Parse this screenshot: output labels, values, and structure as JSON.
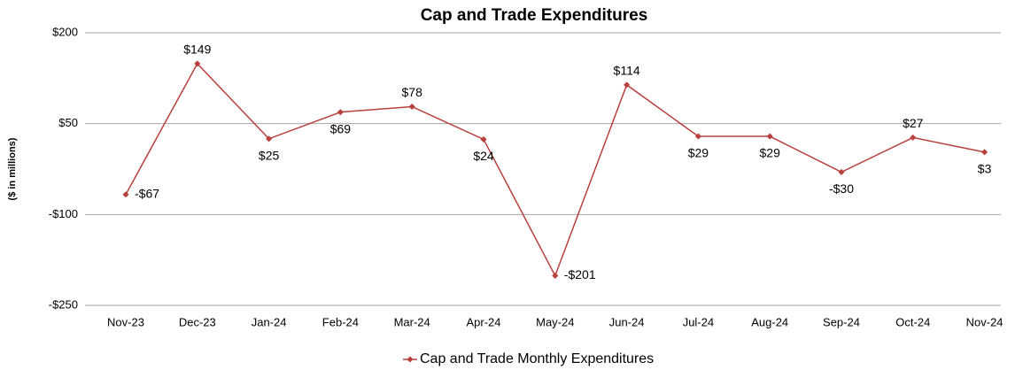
{
  "chart_data": {
    "type": "line",
    "title": "Cap and Trade Expenditures",
    "ylabel": "($ in millions)",
    "categories": [
      "Nov-23",
      "Dec-23",
      "Jan-24",
      "Feb-24",
      "Mar-24",
      "Apr-24",
      "May-24",
      "Jun-24",
      "Jul-24",
      "Aug-24",
      "Sep-24",
      "Oct-24",
      "Nov-24"
    ],
    "series": [
      {
        "name": "Cap and Trade Monthly Expenditures",
        "color": "#b8403c",
        "values": [
          -67,
          149,
          25,
          69,
          78,
          24,
          -201,
          114,
          29,
          29,
          -30,
          27,
          3
        ],
        "value_labels": [
          "-$67",
          "$149",
          "$25",
          "$69",
          "$78",
          "$24",
          "-$201",
          "$114",
          "$29",
          "$29",
          "-$30",
          "$27",
          "$3"
        ]
      }
    ],
    "ylim": [
      -250,
      200
    ],
    "yticks": [
      {
        "value": -250,
        "label": "-$250"
      },
      {
        "value": -100,
        "label": "-$100"
      },
      {
        "value": 50,
        "label": "$50"
      },
      {
        "value": 200,
        "label": "$200"
      }
    ],
    "grid": true,
    "legend": "bottom"
  }
}
